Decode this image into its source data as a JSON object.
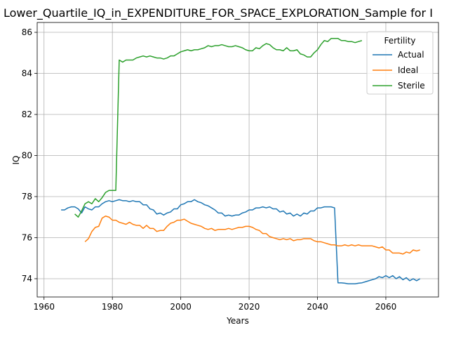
{
  "chart_data": {
    "type": "line",
    "title": "Lower_Quartile_IQ_in_EXPENDITURE_FOR_SPACE_EXPLORATION_Sample for I",
    "xlabel": "Years",
    "ylabel": "IQ",
    "legend_title": "Fertility",
    "legend_loc": "upper right",
    "grid": true,
    "xlim": [
      1958,
      2075.4
    ],
    "ylim": [
      73.11,
      86.48
    ],
    "xticks": [
      1960,
      1980,
      2000,
      2020,
      2040,
      2060
    ],
    "yticks": [
      74,
      76,
      78,
      80,
      82,
      84,
      86
    ],
    "x": [
      1965,
      1966,
      1967,
      1968,
      1969,
      1970,
      1971,
      1972,
      1973,
      1974,
      1975,
      1976,
      1977,
      1978,
      1979,
      1980,
      1981,
      1982,
      1983,
      1984,
      1985,
      1986,
      1987,
      1988,
      1989,
      1990,
      1991,
      1992,
      1993,
      1994,
      1995,
      1996,
      1997,
      1998,
      1999,
      2000,
      2001,
      2002,
      2003,
      2004,
      2005,
      2006,
      2007,
      2008,
      2009,
      2010,
      2011,
      2012,
      2013,
      2014,
      2015,
      2016,
      2017,
      2018,
      2019,
      2020,
      2021,
      2022,
      2023,
      2024,
      2025,
      2026,
      2027,
      2028,
      2029,
      2030,
      2031,
      2032,
      2033,
      2034,
      2035,
      2036,
      2037,
      2038,
      2039,
      2040,
      2041,
      2042,
      2043,
      2044,
      2045,
      2046,
      2047,
      2048,
      2049,
      2050,
      2051,
      2052,
      2053,
      2054,
      2055,
      2056,
      2057,
      2058,
      2059,
      2060,
      2061,
      2062,
      2063,
      2064,
      2065,
      2066,
      2067,
      2068,
      2069,
      2070
    ],
    "series": [
      {
        "name": "Actual",
        "color": "#1f77b4",
        "values": [
          77.35,
          77.35,
          77.45,
          77.5,
          77.5,
          77.4,
          77.2,
          77.5,
          77.4,
          77.35,
          77.5,
          77.5,
          77.65,
          77.75,
          77.8,
          77.75,
          77.8,
          77.85,
          77.8,
          77.8,
          77.75,
          77.8,
          77.75,
          77.75,
          77.6,
          77.6,
          77.4,
          77.35,
          77.15,
          77.2,
          77.1,
          77.2,
          77.25,
          77.4,
          77.4,
          77.6,
          77.65,
          77.75,
          77.75,
          77.85,
          77.75,
          77.7,
          77.6,
          77.55,
          77.45,
          77.35,
          77.2,
          77.2,
          77.05,
          77.1,
          77.05,
          77.1,
          77.1,
          77.2,
          77.25,
          77.35,
          77.35,
          77.45,
          77.45,
          77.5,
          77.45,
          77.5,
          77.4,
          77.4,
          77.25,
          77.3,
          77.15,
          77.2,
          77.05,
          77.15,
          77.05,
          77.2,
          77.15,
          77.3,
          77.3,
          77.45,
          77.45,
          77.5,
          77.5,
          77.5,
          77.45,
          73.8,
          73.8,
          73.78,
          73.75,
          73.75,
          73.75,
          73.78,
          73.8,
          73.85,
          73.9,
          73.95,
          74.0,
          74.1,
          74.05,
          74.15,
          74.05,
          74.15,
          74.0,
          74.1,
          73.95,
          74.05,
          73.9,
          74.0,
          73.9,
          74.0
        ]
      },
      {
        "name": "Ideal",
        "color": "#ff7f0e",
        "values": [
          null,
          null,
          null,
          null,
          null,
          null,
          null,
          75.8,
          75.95,
          76.3,
          76.5,
          76.55,
          76.95,
          77.05,
          77.0,
          76.85,
          76.85,
          76.75,
          76.7,
          76.65,
          76.75,
          76.65,
          76.6,
          76.6,
          76.45,
          76.6,
          76.45,
          76.45,
          76.3,
          76.35,
          76.35,
          76.55,
          76.7,
          76.75,
          76.85,
          76.85,
          76.9,
          76.8,
          76.7,
          76.65,
          76.6,
          76.55,
          76.45,
          76.4,
          76.45,
          76.35,
          76.4,
          76.4,
          76.4,
          76.45,
          76.4,
          76.45,
          76.5,
          76.5,
          76.55,
          76.55,
          76.5,
          76.4,
          76.35,
          76.2,
          76.2,
          76.05,
          76.0,
          75.95,
          75.9,
          75.95,
          75.9,
          75.95,
          75.85,
          75.9,
          75.9,
          75.95,
          75.95,
          75.95,
          75.85,
          75.8,
          75.8,
          75.75,
          75.7,
          75.65,
          75.65,
          75.6,
          75.6,
          75.65,
          75.6,
          75.65,
          75.6,
          75.65,
          75.6,
          75.6,
          75.6,
          75.6,
          75.55,
          75.5,
          75.55,
          75.4,
          75.4,
          75.25,
          75.25,
          75.25,
          75.2,
          75.3,
          75.25,
          75.4,
          75.35,
          75.4
        ]
      },
      {
        "name": "Sterile",
        "color": "#2ca02c",
        "values": [
          null,
          null,
          null,
          null,
          77.15,
          77.0,
          77.3,
          77.65,
          77.75,
          77.65,
          77.9,
          77.75,
          77.95,
          78.2,
          78.3,
          78.3,
          78.3,
          84.65,
          84.55,
          84.65,
          84.65,
          84.65,
          84.75,
          84.8,
          84.85,
          84.8,
          84.85,
          84.8,
          84.75,
          84.75,
          84.7,
          84.75,
          84.85,
          84.85,
          84.95,
          85.05,
          85.1,
          85.15,
          85.1,
          85.15,
          85.15,
          85.2,
          85.25,
          85.35,
          85.3,
          85.35,
          85.35,
          85.4,
          85.35,
          85.3,
          85.3,
          85.35,
          85.3,
          85.25,
          85.15,
          85.1,
          85.1,
          85.25,
          85.2,
          85.35,
          85.45,
          85.4,
          85.25,
          85.15,
          85.15,
          85.1,
          85.25,
          85.1,
          85.1,
          85.15,
          84.95,
          84.9,
          84.8,
          84.8,
          85.0,
          85.15,
          85.4,
          85.6,
          85.55,
          85.7,
          85.7,
          85.7,
          85.6,
          85.6,
          85.55,
          85.55,
          85.5,
          85.55,
          85.6,
          null,
          null,
          null,
          null,
          null,
          null,
          null,
          null,
          null,
          null,
          null,
          null,
          null,
          null,
          null,
          null,
          null
        ]
      }
    ]
  }
}
